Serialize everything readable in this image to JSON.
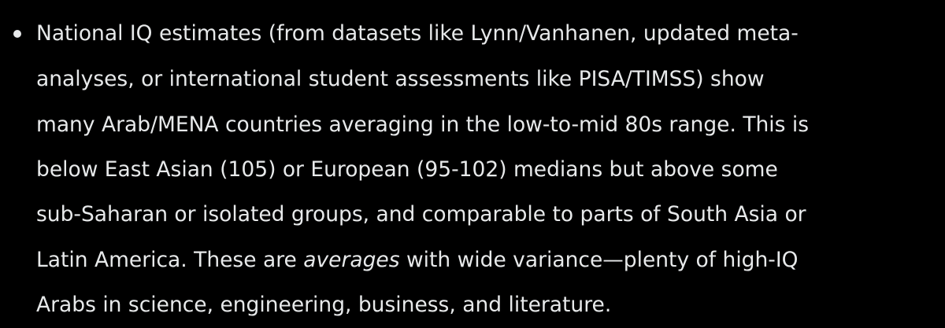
{
  "list_item": {
    "lines": [
      "National IQ estimates (from datasets like Lynn/Vanhanen, updated meta-",
      "analyses, or international student assessments like PISA/TIMSS) show",
      "many Arab/MENA countries averaging in the low-to-mid 80s range. This is",
      "below East Asian (105) or European (95-102) medians but above some",
      "sub-Saharan or isolated groups, and comparable to parts of South Asia or",
      {
        "before": "Latin America. These are ",
        "emphasis": "averages",
        "after": " with wide variance—plenty of high-IQ"
      },
      "Arabs in science, engineering, business, and literature."
    ]
  }
}
